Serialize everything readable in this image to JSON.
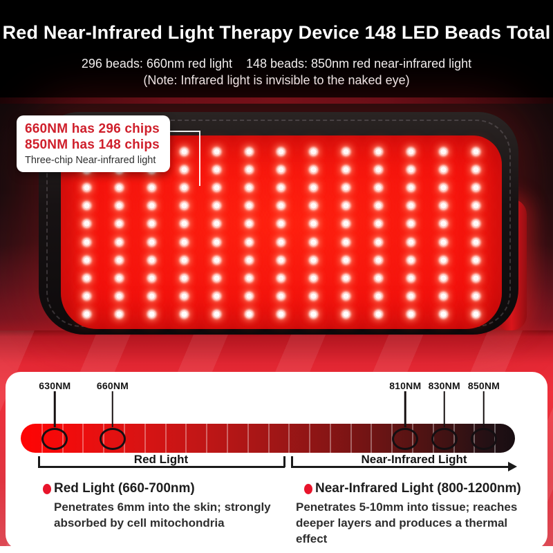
{
  "header": {
    "title": "Red Near-Infrared Light Therapy Device 148 LED Beads Total",
    "subtitle_left": "296 beads: 660nm red light",
    "subtitle_right": "148 beads: 850nm red near-infrared light",
    "note": "(Note: Infrared light is invisible to the naked eye)"
  },
  "callout": {
    "line1": "660NM has 296 chips",
    "line2": "850NM has 148 chips",
    "line3": "Three-chip Near-infrared light",
    "accent_color": "#cf1f2b"
  },
  "device": {
    "led_cols": 13,
    "led_rows": 10,
    "panel_color": "#f01310",
    "glow_color": "#ff2312"
  },
  "spectrum": {
    "bar_segment_dividers": 23,
    "bar_color_start": "#ff0404",
    "bar_color_mid": "#8d1515",
    "bar_color_end": "#180e12",
    "markers": [
      {
        "label": "630NM",
        "pct": 6.9
      },
      {
        "label": "660NM",
        "pct": 18.6
      },
      {
        "label": "810NM",
        "pct": 77.8
      },
      {
        "label": "830NM",
        "pct": 85.7
      },
      {
        "label": "850NM",
        "pct": 93.7
      }
    ],
    "ranges": [
      {
        "label": "Red Light"
      },
      {
        "label": "Near-Infrared Light"
      }
    ]
  },
  "legend": {
    "bullet_color": "#e8142b",
    "items": [
      {
        "title": "Red Light (660-700nm)",
        "body": "Penetrates 6mm into the skin; strongly absorbed by cell mitochondria"
      },
      {
        "title": "Near-Infrared Light (800-1200nm)",
        "body": "Penetrates 5-10mm into tissue; reaches deeper layers and produces a thermal effect"
      }
    ]
  }
}
